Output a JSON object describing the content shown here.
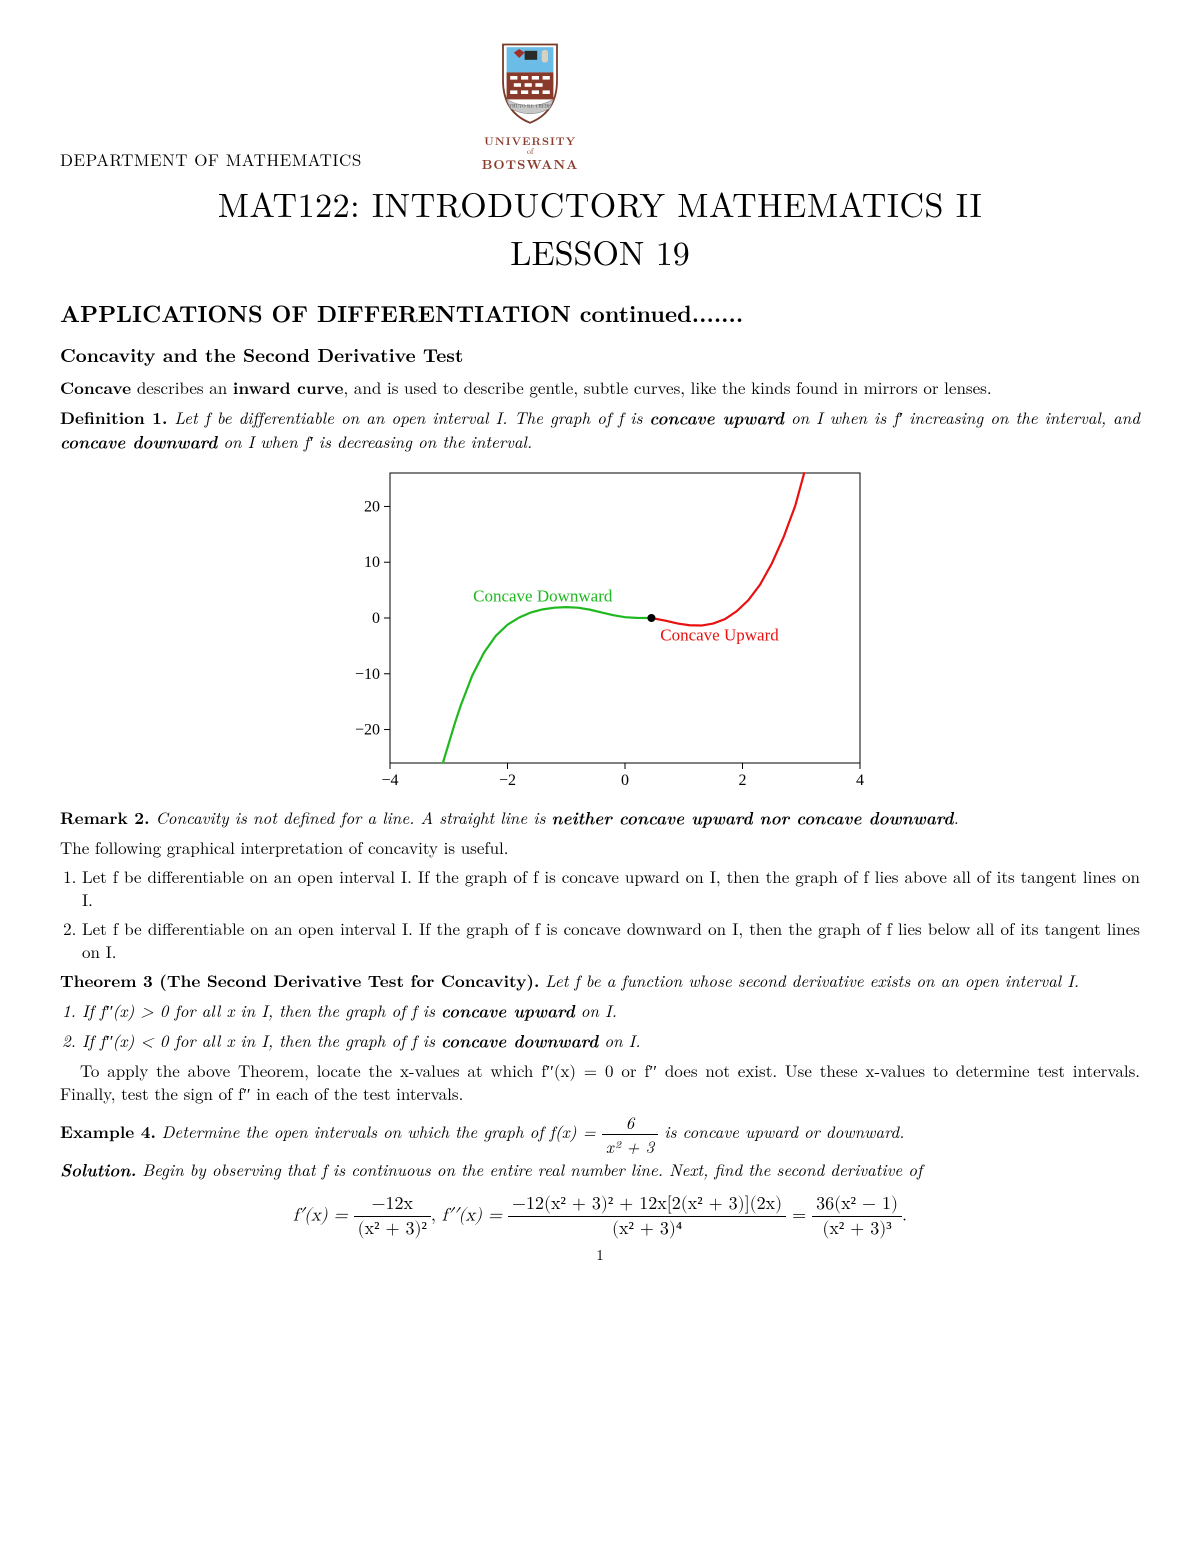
{
  "header": {
    "department": "DEPARTMENT OF MATHEMATICS",
    "university_line1": "UNIVERSITY",
    "university_of": "of",
    "university_line2": "BOTSWANA",
    "banner_text": "THUTO KE THEBE"
  },
  "title": "MAT122: INTRODUCTORY MATHEMATICS II",
  "lesson": "LESSON 19",
  "section_heading": "APPLICATIONS OF DIFFERENTIATION continued.......",
  "subsection_heading": "Concavity and the Second Derivative Test",
  "intro_sentence_pre": "Concave",
  "intro_sentence_mid": " describes an ",
  "intro_sentence_bold2": "inward curve",
  "intro_sentence_post": ", and is used to describe gentle, subtle curves, like the kinds found in mirrors or lenses.",
  "definition": {
    "label": "Definition 1.",
    "text_a": "Let f be differentiable on an open interval I. The graph of f is ",
    "bold_up": "concave upward",
    "text_b": " on I when is f′ increasing on the interval, and ",
    "bold_down": "concave downward",
    "text_c": " on I when f′ is decreasing on the interval."
  },
  "chart": {
    "type": "line",
    "xlim": [
      -4,
      4
    ],
    "ylim": [
      -26,
      26
    ],
    "xticks": [
      -4,
      -2,
      0,
      2,
      4
    ],
    "yticks": [
      -20,
      -10,
      0,
      10,
      20
    ],
    "background_color": "#ffffff",
    "axis_color": "#000000",
    "axis_stroke": 1,
    "frame_stroke": 1,
    "green": "#1fb81f",
    "red": "#e81010",
    "black": "#000000",
    "tick_fontsize": 16,
    "label_down": "Concave Downward",
    "label_down_color": "#1fb81f",
    "label_down_pos": [
      -1.4,
      3
    ],
    "label_up": "Concave Upward",
    "label_up_color": "#e81010",
    "label_up_pos": [
      0.6,
      -4
    ],
    "inflection": [
      0.45,
      0
    ],
    "curve_green": [
      [
        -3.1,
        -26
      ],
      [
        -3.0,
        -22.5
      ],
      [
        -2.9,
        -19
      ],
      [
        -2.8,
        -15.8
      ],
      [
        -2.6,
        -10.3
      ],
      [
        -2.4,
        -6.2
      ],
      [
        -2.2,
        -3.2
      ],
      [
        -2.0,
        -1.2
      ],
      [
        -1.8,
        0.1
      ],
      [
        -1.6,
        1.0
      ],
      [
        -1.4,
        1.55
      ],
      [
        -1.2,
        1.85
      ],
      [
        -1.0,
        1.95
      ],
      [
        -0.8,
        1.85
      ],
      [
        -0.6,
        1.5
      ],
      [
        -0.4,
        1.0
      ],
      [
        -0.2,
        0.5
      ],
      [
        0.0,
        0.15
      ],
      [
        0.2,
        0.02
      ],
      [
        0.45,
        0.0
      ]
    ],
    "curve_red": [
      [
        0.45,
        0.0
      ],
      [
        0.7,
        -0.5
      ],
      [
        0.9,
        -1.0
      ],
      [
        1.1,
        -1.3
      ],
      [
        1.3,
        -1.35
      ],
      [
        1.5,
        -1.0
      ],
      [
        1.7,
        -0.2
      ],
      [
        1.9,
        1.2
      ],
      [
        2.1,
        3.2
      ],
      [
        2.3,
        6.0
      ],
      [
        2.5,
        9.8
      ],
      [
        2.7,
        14.5
      ],
      [
        2.9,
        20.2
      ],
      [
        3.05,
        26
      ]
    ]
  },
  "remark": {
    "label": "Remark 2.",
    "text_a": "Concavity is not defined for a line. A straight line is ",
    "bold": "neither concave upward nor concave downward",
    "text_b": "."
  },
  "interp_intro": "The following graphical interpretation of concavity is useful.",
  "interp_items": [
    "Let f be differentiable on an open interval I. If the graph of f is concave upward on I, then the graph of f lies above all of its tangent lines on I.",
    "Let f be differentiable on an open interval I. If the graph of f is concave downward on I, then the graph of f lies below all of its tangent lines on I."
  ],
  "theorem": {
    "label": "Theorem 3",
    "paren": " (The Second Derivative Test for Concavity).",
    "intro": "Let f be a function whose second derivative exists on an open interval I.",
    "items": [
      {
        "pre": "If f′′(x) > 0 for all x in I, then the graph of f is ",
        "bold": "concave upward",
        "post": " on I."
      },
      {
        "pre": "If f′′(x) < 0 for all x in I, then the graph of f is ",
        "bold": "concave downward",
        "post": " on I."
      }
    ]
  },
  "apply_para_a": "To apply the above Theorem, locate the x-values at which f′′(x) = 0 or f′′ does not exist. Use these x-values to determine test intervals. Finally, test the sign of f′′ in each of the test intervals.",
  "example": {
    "label": "Example 4.",
    "text_a": "Determine the open intervals on which the graph of f(x) = ",
    "frac_num": "6",
    "frac_den": "x² + 3",
    "text_b": " is concave upward or downward.",
    "solution_label": "Solution.",
    "solution_text": "Begin by observing that f is continuous on the entire real number line. Next, find the second derivative of"
  },
  "equation": {
    "fprime_lhs": "f′(x) = ",
    "fprime_num": "−12x",
    "fprime_den": "(x² + 3)²",
    "sep": ",      ",
    "fpp_lhs": "f′′(x) = ",
    "fpp_num": "−12(x² + 3)² + 12x[2(x² + 3)](2x)",
    "fpp_den": "(x² + 3)⁴",
    "eq": " = ",
    "simpl_num": "36(x² − 1)",
    "simpl_den": "(x² + 3)³",
    "tail": "."
  },
  "page_number": "1"
}
